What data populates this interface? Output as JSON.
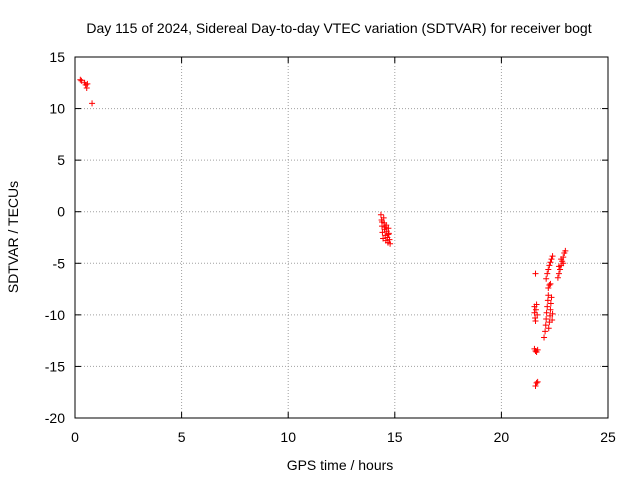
{
  "chart_data": {
    "type": "scatter",
    "title": "Day 115 of 2024, Sidereal Day-to-day VTEC variation (SDTVAR) for receiver bogt",
    "xlabel": "GPS time / hours",
    "ylabel": "SDTVAR / TECUs",
    "xlim": [
      0,
      25
    ],
    "ylim": [
      -20,
      15
    ],
    "xticks": [
      0,
      5,
      10,
      15,
      20,
      25
    ],
    "yticks": [
      -20,
      -15,
      -10,
      -5,
      0,
      5,
      10,
      15
    ],
    "grid": true,
    "marker": "+",
    "series": [
      {
        "color": "#ff0000",
        "points": [
          [
            0.25,
            12.8
          ],
          [
            0.3,
            12.7
          ],
          [
            0.45,
            12.5
          ],
          [
            0.5,
            12.3
          ],
          [
            0.55,
            12.0
          ],
          [
            0.58,
            12.4
          ],
          [
            0.8,
            10.5
          ],
          [
            14.35,
            -0.3
          ],
          [
            14.38,
            -0.8
          ],
          [
            14.4,
            -1.4
          ],
          [
            14.42,
            -2.0
          ],
          [
            14.45,
            -2.6
          ],
          [
            14.48,
            -0.6
          ],
          [
            14.5,
            -1.1
          ],
          [
            14.52,
            -1.7
          ],
          [
            14.55,
            -2.3
          ],
          [
            14.58,
            -2.8
          ],
          [
            14.6,
            -1.3
          ],
          [
            14.62,
            -1.9
          ],
          [
            14.65,
            -2.5
          ],
          [
            14.68,
            -3.0
          ],
          [
            14.7,
            -1.6
          ],
          [
            14.72,
            -2.1
          ],
          [
            14.75,
            -2.7
          ],
          [
            14.78,
            -3.1
          ],
          [
            14.4,
            -1.0
          ],
          [
            14.55,
            -1.5
          ],
          [
            14.7,
            -2.2
          ],
          [
            21.6,
            -6.0
          ],
          [
            21.6,
            -16.9
          ],
          [
            21.65,
            -16.6
          ],
          [
            21.7,
            -16.5
          ],
          [
            21.55,
            -13.3
          ],
          [
            21.6,
            -13.5
          ],
          [
            21.65,
            -13.6
          ],
          [
            21.7,
            -13.4
          ],
          [
            21.55,
            -9.2
          ],
          [
            21.55,
            -9.8
          ],
          [
            21.58,
            -10.3
          ],
          [
            21.6,
            -10.6
          ],
          [
            21.62,
            -9.5
          ],
          [
            21.65,
            -9.0
          ],
          [
            21.68,
            -10.0
          ],
          [
            22.0,
            -12.2
          ],
          [
            22.05,
            -11.6
          ],
          [
            22.08,
            -11.0
          ],
          [
            22.1,
            -10.4
          ],
          [
            22.12,
            -9.8
          ],
          [
            22.15,
            -9.2
          ],
          [
            22.18,
            -8.6
          ],
          [
            22.2,
            -8.1
          ],
          [
            22.22,
            -11.3
          ],
          [
            22.25,
            -10.7
          ],
          [
            22.28,
            -10.1
          ],
          [
            22.3,
            -9.5
          ],
          [
            22.32,
            -8.9
          ],
          [
            22.35,
            -8.3
          ],
          [
            22.38,
            -10.5
          ],
          [
            22.4,
            -9.9
          ],
          [
            22.2,
            -7.4
          ],
          [
            22.25,
            -7.1
          ],
          [
            22.3,
            -7.0
          ],
          [
            22.1,
            -6.5
          ],
          [
            22.15,
            -6.0
          ],
          [
            22.2,
            -5.6
          ],
          [
            22.25,
            -5.2
          ],
          [
            22.3,
            -4.9
          ],
          [
            22.35,
            -4.6
          ],
          [
            22.4,
            -4.3
          ],
          [
            22.65,
            -6.4
          ],
          [
            22.7,
            -6.0
          ],
          [
            22.75,
            -5.6
          ],
          [
            22.8,
            -5.2
          ],
          [
            22.85,
            -4.8
          ],
          [
            22.9,
            -4.4
          ],
          [
            22.95,
            -4.0
          ],
          [
            23.0,
            -3.8
          ],
          [
            22.7,
            -5.3
          ],
          [
            22.8,
            -4.6
          ],
          [
            22.9,
            -5.0
          ]
        ]
      }
    ]
  }
}
